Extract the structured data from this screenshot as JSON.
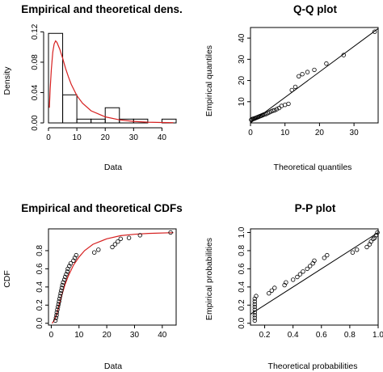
{
  "chart_data": [
    {
      "id": "density",
      "type": "bar",
      "title": "Empirical and theoretical dens.",
      "xlabel": "Data",
      "ylabel": "Density",
      "xlim": [
        0,
        45
      ],
      "ylim": [
        0,
        0.13
      ],
      "x_ticks": [
        0,
        10,
        20,
        30,
        40
      ],
      "y_ticks": [
        0.0,
        0.04,
        0.08,
        0.12
      ],
      "y_tick_labels": [
        "0.00",
        "0.04",
        "0.08",
        "0.12"
      ],
      "bins": [
        {
          "x0": 0,
          "x1": 5,
          "density": 0.118
        },
        {
          "x0": 5,
          "x1": 10,
          "density": 0.037
        },
        {
          "x0": 10,
          "x1": 15,
          "density": 0.005
        },
        {
          "x0": 15,
          "x1": 20,
          "density": 0.005
        },
        {
          "x0": 20,
          "x1": 25,
          "density": 0.02
        },
        {
          "x0": 25,
          "x1": 30,
          "density": 0.005
        },
        {
          "x0": 30,
          "x1": 35,
          "density": 0.005
        },
        {
          "x0": 35,
          "x1": 40,
          "density": 0.0
        },
        {
          "x0": 40,
          "x1": 45,
          "density": 0.005
        }
      ],
      "fit_curve": {
        "color": "#d62020",
        "points": [
          [
            0.3,
            0.02
          ],
          [
            0.6,
            0.045
          ],
          [
            1.0,
            0.07
          ],
          [
            1.5,
            0.093
          ],
          [
            2.0,
            0.104
          ],
          [
            2.5,
            0.108
          ],
          [
            3.0,
            0.106
          ],
          [
            4.0,
            0.097
          ],
          [
            5.0,
            0.085
          ],
          [
            6.0,
            0.072
          ],
          [
            7.0,
            0.061
          ],
          [
            8.0,
            0.051
          ],
          [
            10.0,
            0.036
          ],
          [
            12.0,
            0.026
          ],
          [
            15.0,
            0.016
          ],
          [
            20.0,
            0.008
          ],
          [
            25.0,
            0.004
          ],
          [
            30.0,
            0.002
          ],
          [
            35.0,
            0.001
          ],
          [
            40.0,
            0.0005
          ],
          [
            44.0,
            0.0003
          ]
        ]
      }
    },
    {
      "id": "qq",
      "type": "scatter",
      "title": "Q-Q plot",
      "xlabel": "Theoretical quantiles",
      "ylabel": "Empirical quantiles",
      "xlim": [
        0,
        37
      ],
      "ylim": [
        0,
        45
      ],
      "x_ticks": [
        0,
        10,
        20,
        30
      ],
      "y_ticks": [
        10,
        20,
        30,
        40
      ],
      "points": [
        [
          0.2,
          1.5
        ],
        [
          0.5,
          1.8
        ],
        [
          0.8,
          2.0
        ],
        [
          1.0,
          2.0
        ],
        [
          1.3,
          2.2
        ],
        [
          1.6,
          2.4
        ],
        [
          1.9,
          2.6
        ],
        [
          2.2,
          2.8
        ],
        [
          2.5,
          3.0
        ],
        [
          2.8,
          3.2
        ],
        [
          3.1,
          3.4
        ],
        [
          3.4,
          3.6
        ],
        [
          3.7,
          3.8
        ],
        [
          4.0,
          4.0
        ],
        [
          4.5,
          4.2
        ],
        [
          5.0,
          4.6
        ],
        [
          5.5,
          5.0
        ],
        [
          6.0,
          5.4
        ],
        [
          6.5,
          5.8
        ],
        [
          7.0,
          6.0
        ],
        [
          7.6,
          6.5
        ],
        [
          8.3,
          7.0
        ],
        [
          9.0,
          8.0
        ],
        [
          10.0,
          8.5
        ],
        [
          11.0,
          9.0
        ],
        [
          12.0,
          15.5
        ],
        [
          13.0,
          17.0
        ],
        [
          14.0,
          22.0
        ],
        [
          15.0,
          23.0
        ],
        [
          16.5,
          24.0
        ],
        [
          18.5,
          25.0
        ],
        [
          22.0,
          28.0
        ],
        [
          27.0,
          32.0
        ],
        [
          36.0,
          43.0
        ]
      ],
      "ref_line": [
        [
          0,
          0
        ],
        [
          37,
          44.5
        ]
      ]
    },
    {
      "id": "cdf",
      "type": "scatter",
      "title": "Empirical and theoretical CDFs",
      "xlabel": "Data",
      "ylabel": "CDF",
      "xlim": [
        -1,
        45
      ],
      "ylim": [
        -0.02,
        1.04
      ],
      "x_ticks": [
        0,
        10,
        20,
        30,
        40
      ],
      "y_ticks": [
        0.0,
        0.2,
        0.4,
        0.6,
        0.8
      ],
      "y_tick_labels": [
        "0.0",
        "0.2",
        "0.4",
        "0.6",
        "0.8"
      ],
      "points": [
        [
          1.5,
          0.03
        ],
        [
          1.7,
          0.06
        ],
        [
          1.9,
          0.09
        ],
        [
          2.0,
          0.12
        ],
        [
          2.2,
          0.15
        ],
        [
          2.4,
          0.18
        ],
        [
          2.6,
          0.21
        ],
        [
          2.8,
          0.24
        ],
        [
          3.0,
          0.27
        ],
        [
          3.2,
          0.3
        ],
        [
          3.4,
          0.33
        ],
        [
          3.6,
          0.36
        ],
        [
          3.8,
          0.39
        ],
        [
          4.0,
          0.42
        ],
        [
          4.3,
          0.45
        ],
        [
          4.7,
          0.48
        ],
        [
          5.0,
          0.51
        ],
        [
          5.4,
          0.54
        ],
        [
          5.8,
          0.57
        ],
        [
          6.0,
          0.6
        ],
        [
          6.5,
          0.63
        ],
        [
          7.0,
          0.66
        ],
        [
          8.0,
          0.69
        ],
        [
          8.5,
          0.72
        ],
        [
          9.0,
          0.75
        ],
        [
          15.5,
          0.78
        ],
        [
          17.0,
          0.81
        ],
        [
          22.0,
          0.84
        ],
        [
          23.0,
          0.87
        ],
        [
          24.0,
          0.9
        ],
        [
          25.0,
          0.93
        ],
        [
          28.0,
          0.94
        ],
        [
          32.0,
          0.97
        ],
        [
          43.0,
          1.0
        ]
      ],
      "fit_curve": {
        "color": "#d62020",
        "points": [
          [
            0.3,
            0.0
          ],
          [
            1,
            0.03
          ],
          [
            2,
            0.1
          ],
          [
            3,
            0.22
          ],
          [
            4,
            0.33
          ],
          [
            5,
            0.43
          ],
          [
            6,
            0.51
          ],
          [
            8,
            0.64
          ],
          [
            10,
            0.73
          ],
          [
            12,
            0.8
          ],
          [
            15,
            0.87
          ],
          [
            20,
            0.93
          ],
          [
            25,
            0.965
          ],
          [
            30,
            0.98
          ],
          [
            35,
            0.99
          ],
          [
            44,
            0.998
          ]
        ]
      }
    },
    {
      "id": "pp",
      "type": "scatter",
      "title": "P-P plot",
      "xlabel": "Theoretical probabilities",
      "ylabel": "Empirical probabilities",
      "xlim": [
        0.1,
        1.0
      ],
      "ylim": [
        -0.02,
        1.04
      ],
      "x_ticks": [
        0.2,
        0.4,
        0.6,
        0.8,
        1.0
      ],
      "x_tick_labels": [
        "0.2",
        "0.4",
        "0.6",
        "0.8",
        "1.0"
      ],
      "y_ticks": [
        0.0,
        0.2,
        0.4,
        0.6,
        0.8,
        1.0
      ],
      "y_tick_labels": [
        "0.0",
        "0.2",
        "0.4",
        "0.6",
        "0.8",
        "1.0"
      ],
      "points": [
        [
          0.13,
          0.03
        ],
        [
          0.13,
          0.06
        ],
        [
          0.13,
          0.09
        ],
        [
          0.13,
          0.12
        ],
        [
          0.13,
          0.15
        ],
        [
          0.13,
          0.18
        ],
        [
          0.13,
          0.21
        ],
        [
          0.13,
          0.24
        ],
        [
          0.13,
          0.27
        ],
        [
          0.14,
          0.3
        ],
        [
          0.23,
          0.33
        ],
        [
          0.25,
          0.36
        ],
        [
          0.27,
          0.39
        ],
        [
          0.34,
          0.42
        ],
        [
          0.35,
          0.45
        ],
        [
          0.4,
          0.48
        ],
        [
          0.43,
          0.51
        ],
        [
          0.45,
          0.54
        ],
        [
          0.47,
          0.57
        ],
        [
          0.5,
          0.6
        ],
        [
          0.52,
          0.63
        ],
        [
          0.54,
          0.66
        ],
        [
          0.55,
          0.69
        ],
        [
          0.62,
          0.72
        ],
        [
          0.64,
          0.75
        ],
        [
          0.82,
          0.78
        ],
        [
          0.85,
          0.81
        ],
        [
          0.92,
          0.84
        ],
        [
          0.94,
          0.87
        ],
        [
          0.95,
          0.9
        ],
        [
          0.965,
          0.93
        ],
        [
          0.975,
          0.94
        ],
        [
          0.985,
          0.97
        ],
        [
          0.995,
          1.0
        ]
      ],
      "ref_line": [
        [
          0.1,
          0.1
        ],
        [
          1.0,
          1.0
        ]
      ]
    }
  ]
}
